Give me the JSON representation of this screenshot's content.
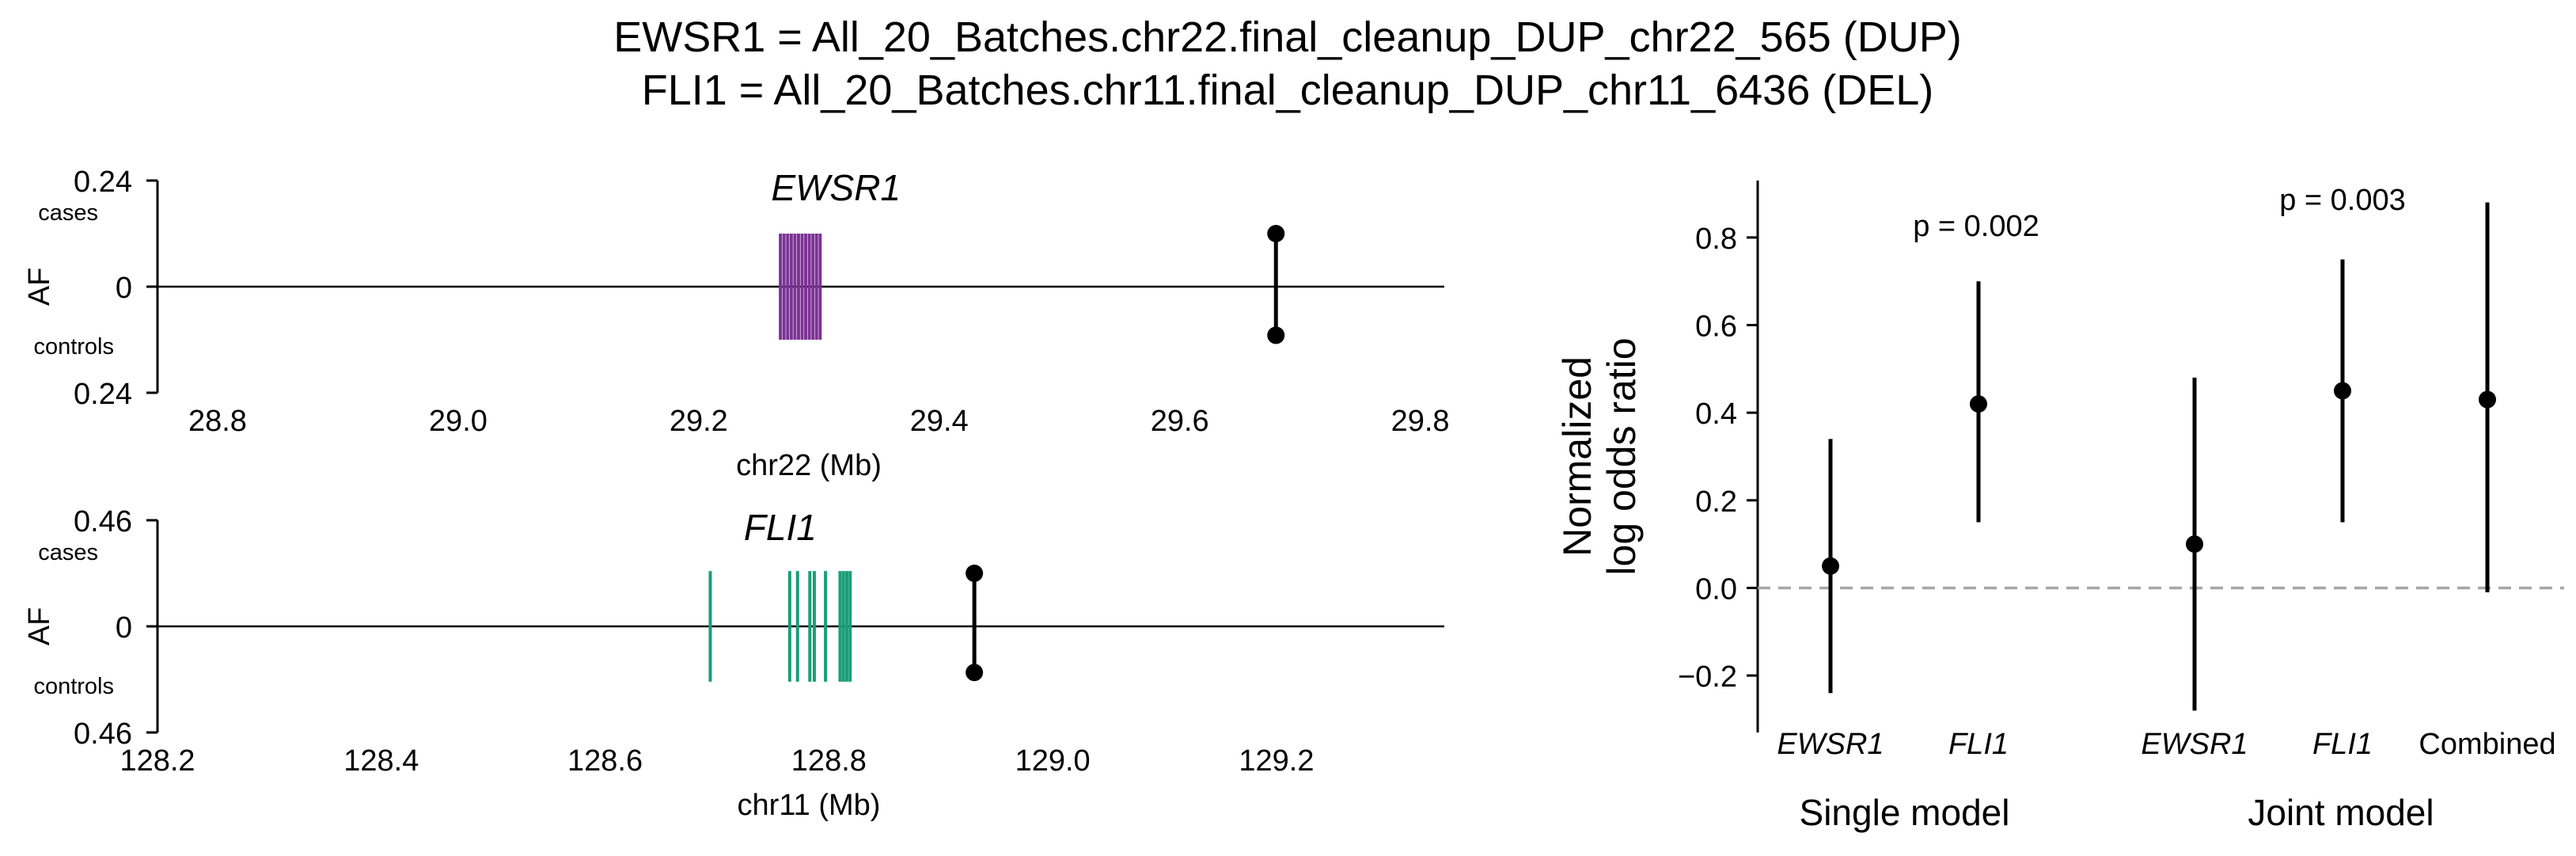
{
  "title_lines": [
    "EWSR1 = All_20_Batches.chr22.final_cleanup_DUP_chr22_565 (DUP)",
    "FLI1 = All_20_Batches.chr11.final_cleanup_DUP_chr11_6436 (DEL)"
  ],
  "colors": {
    "ewsr1_exons": "#7b3294",
    "fli1_exons": "#1a9e77",
    "ink": "#000000",
    "null_line": "#a6a6a6"
  },
  "chart_data": [
    {
      "type": "scatter",
      "panel": "EWSR1 locus",
      "title": "EWSR1",
      "xlabel": "chr22 (Mb)",
      "ylabel": "AF",
      "xlim": [
        28.75,
        29.82
      ],
      "x_ticks": [
        "28.8",
        "29.0",
        "29.2",
        "29.4",
        "29.6",
        "29.8"
      ],
      "x_tick_values": [
        28.8,
        29.0,
        29.2,
        29.4,
        29.6,
        29.8
      ],
      "y_top_label": "0.24",
      "y_zero_label": "0",
      "y_bottom_label": "0.24",
      "cases_label": "cases",
      "controls_label": "controls",
      "y_max": 0.24,
      "gene_exons_mb": [
        29.268,
        29.271,
        29.274,
        29.277,
        29.28,
        29.283,
        29.286,
        29.289,
        29.292,
        29.295,
        29.298,
        29.301
      ],
      "exon_af_extent": 0.12,
      "sv_position_mb": 29.68,
      "cases_af": 0.12,
      "controls_af": 0.11
    },
    {
      "type": "scatter",
      "panel": "FLI1 locus",
      "title": "FLI1",
      "xlabel": "chr11 (Mb)",
      "ylabel": "AF",
      "xlim": [
        128.2,
        129.35
      ],
      "x_ticks": [
        "128.2",
        "128.4",
        "128.6",
        "128.8",
        "129.0",
        "129.2"
      ],
      "x_tick_values": [
        128.2,
        128.4,
        128.6,
        128.8,
        129.0,
        129.2
      ],
      "y_top_label": "0.46",
      "y_zero_label": "0",
      "y_bottom_label": "0.46",
      "cases_label": "cases",
      "controls_label": "controls",
      "y_max": 0.46,
      "gene_exons_mb": [
        128.694,
        128.765,
        128.772,
        128.783,
        128.787,
        128.797,
        128.81,
        128.813,
        128.816,
        128.819
      ],
      "exon_af_extent": 0.24,
      "sv_position_mb": 128.93,
      "cases_af": 0.23,
      "controls_af": 0.2
    },
    {
      "type": "scatter",
      "panel": "odds ratios",
      "ylabel_lines": [
        "Normalized",
        "log odds ratio"
      ],
      "ylim": [
        -0.33,
        0.93
      ],
      "y_ticks": [
        "−0.2",
        "0.0",
        "0.2",
        "0.4",
        "0.6",
        "0.8"
      ],
      "y_tick_values": [
        -0.2,
        0.0,
        0.2,
        0.4,
        0.6,
        0.8
      ],
      "null_line_y": 0.0,
      "points": [
        {
          "label": "EWSR1",
          "italic": true,
          "value": 0.05,
          "ci": [
            -0.24,
            0.34
          ]
        },
        {
          "label": "FLI1",
          "italic": true,
          "value": 0.42,
          "ci": [
            0.15,
            0.7
          ]
        },
        {
          "label": "EWSR1",
          "italic": true,
          "value": 0.1,
          "ci": [
            -0.28,
            0.48
          ]
        },
        {
          "label": "FLI1",
          "italic": true,
          "value": 0.45,
          "ci": [
            0.15,
            0.75
          ]
        },
        {
          "label": "Combined",
          "italic": false,
          "value": 0.43,
          "ci": [
            -0.01,
            0.88
          ]
        }
      ],
      "groups": [
        {
          "label": "Single model",
          "pvalue": "p = 0.002"
        },
        {
          "label": "Joint model",
          "pvalue": "p = 0.003"
        }
      ]
    }
  ]
}
